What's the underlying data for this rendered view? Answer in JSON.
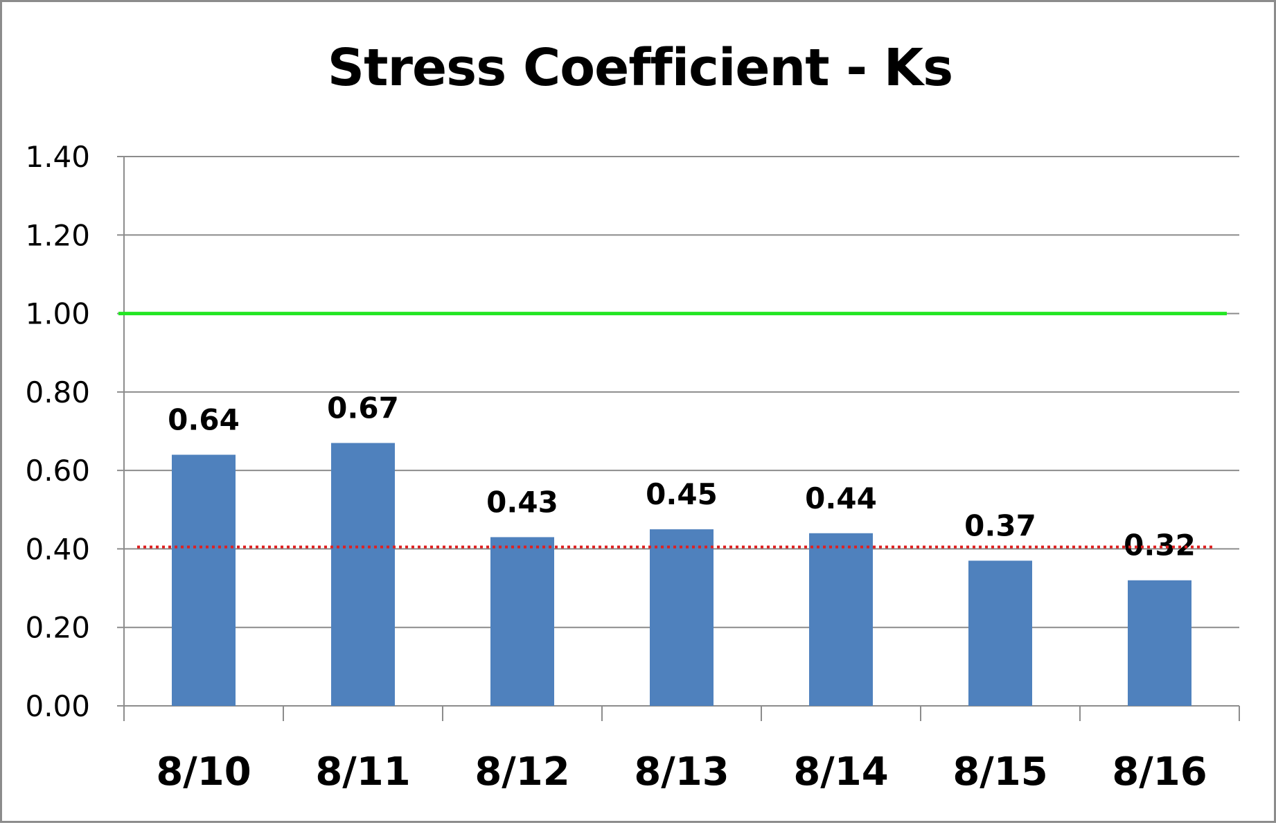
{
  "chart_data": {
    "type": "bar",
    "title": "Stress Coefficient - Ks",
    "xlabel": "",
    "ylabel": "",
    "categories": [
      "8/10",
      "8/11",
      "8/12",
      "8/13",
      "8/14",
      "8/15",
      "8/16"
    ],
    "values": [
      0.64,
      0.67,
      0.43,
      0.45,
      0.44,
      0.37,
      0.32
    ],
    "data_labels": [
      "0.64",
      "0.67",
      "0.43",
      "0.45",
      "0.44",
      "0.37",
      "0.32"
    ],
    "ylim": [
      0,
      1.4
    ],
    "yticks": [
      0,
      0.2,
      0.4,
      0.6,
      0.8,
      1.0,
      1.2,
      1.4
    ],
    "ytick_labels": [
      "0.00",
      "0.20",
      "0.40",
      "0.60",
      "0.80",
      "1.00",
      "1.20",
      "1.40"
    ],
    "grid": true,
    "legend": "none",
    "reference_lines": [
      {
        "value": 1.0,
        "style": "solid",
        "color": "#22e622"
      },
      {
        "value": 0.405,
        "style": "dotted",
        "color": "#e02020"
      }
    ],
    "colors": {
      "bar": "#4f81bd",
      "gridline": "#8c8c8c",
      "axis": "#8c8c8c"
    }
  }
}
